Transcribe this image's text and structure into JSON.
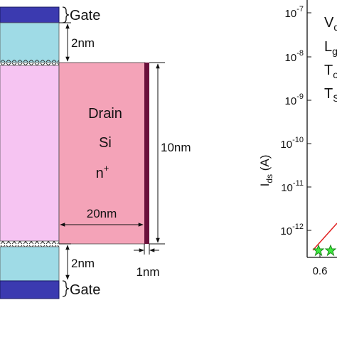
{
  "diagram": {
    "gate_top": "Gate",
    "gate_bottom": "Gate",
    "oxide_top_thickness": "2nm",
    "oxide_bottom_thickness": "2nm",
    "drain": {
      "line1": "Drain",
      "line2": "Si",
      "line3_base": "n",
      "line3_sup": "+"
    },
    "height": "10nm",
    "length": "20nm",
    "contact": "1nm"
  },
  "partial_chart": {
    "y_axis_label": {
      "base": "I",
      "sub": "ds",
      "unit": " (A)"
    },
    "y_tick_labels": [
      {
        "base": "10",
        "exp": "-7"
      },
      {
        "base": "10",
        "exp": "-8"
      },
      {
        "base": "10",
        "exp": "-9"
      },
      {
        "base": "10",
        "exp": "-10"
      },
      {
        "base": "10",
        "exp": "-11"
      },
      {
        "base": "10",
        "exp": "-12"
      }
    ],
    "x_tick_labels": [
      "0.6"
    ],
    "legend_fragments": [
      {
        "base": "V",
        "sub": "d"
      },
      {
        "base": "L",
        "sub": "g"
      },
      {
        "base": "T",
        "sub": "o"
      },
      {
        "base": "T",
        "sub": "S"
      }
    ]
  }
}
